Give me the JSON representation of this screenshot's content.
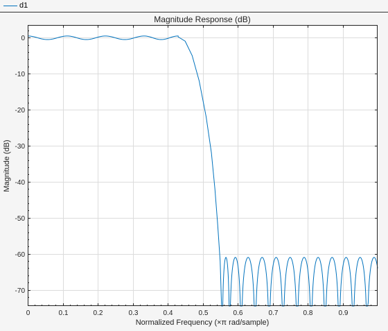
{
  "legend": {
    "entry": "d1"
  },
  "colors": {
    "series": "#0072bd",
    "grid": "#dcdcdc",
    "axes": "#222222",
    "background": "#f5f5f5",
    "plot": "#ffffff"
  },
  "chart_data": {
    "type": "line",
    "title": "Magnitude Response (dB)",
    "xlabel": "Normalized Frequency (×π rad/sample)",
    "ylabel": "Magnitude (dB)",
    "xlim": [
      0,
      1
    ],
    "ylim": [
      -74.5,
      3.5
    ],
    "grid": true,
    "legend_position": "top-left",
    "xticks": [
      0,
      0.1,
      0.2,
      0.3,
      0.4,
      0.5,
      0.6,
      0.7,
      0.8,
      0.9
    ],
    "xtick_labels": [
      "0",
      "0.1",
      "0.2",
      "0.3",
      "0.4",
      "0.5",
      "0.6",
      "0.7",
      "0.8",
      "0.9"
    ],
    "yticks": [
      0,
      -10,
      -20,
      -30,
      -40,
      -50,
      -60,
      -70
    ],
    "ytick_labels": [
      "0",
      "-10",
      "-20",
      "-30",
      "-40",
      "-50",
      "-60",
      "-70"
    ],
    "series": [
      {
        "name": "d1",
        "passband_ripple_db": 0.5,
        "passband_peaks": [
          0,
          0.113,
          0.222,
          0.333,
          0.43
        ],
        "transition": [
          [
            0.43,
            0.2
          ],
          [
            0.45,
            -1
          ],
          [
            0.47,
            -5
          ],
          [
            0.49,
            -12
          ],
          [
            0.51,
            -22
          ],
          [
            0.525,
            -32
          ],
          [
            0.535,
            -42
          ],
          [
            0.543,
            -52
          ],
          [
            0.55,
            -62
          ],
          [
            0.554,
            -75
          ]
        ],
        "stopband_level_db": -61,
        "stopband_nulls": [
          0.556,
          0.577,
          0.61,
          0.65,
          0.69,
          0.73,
          0.77,
          0.81,
          0.85,
          0.89,
          0.93,
          0.97
        ]
      }
    ]
  }
}
